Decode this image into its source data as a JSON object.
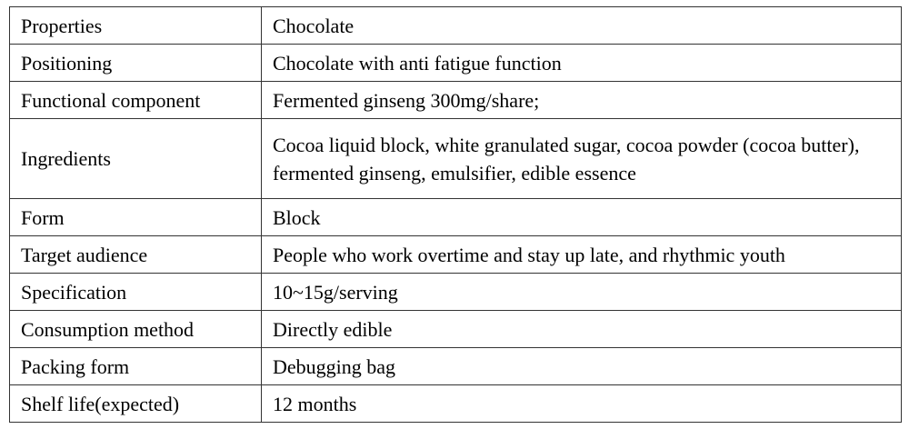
{
  "table": {
    "rows": [
      {
        "label": "Properties",
        "value": "Chocolate"
      },
      {
        "label": "Positioning",
        "value": "Chocolate with anti fatigue function"
      },
      {
        "label": "Functional component",
        "value": "Fermented ginseng 300mg/share;"
      },
      {
        "label": "Ingredients",
        "value": "Cocoa liquid block, white granulated sugar, cocoa powder (cocoa butter), fermented ginseng, emulsifier, edible essence"
      },
      {
        "label": "Form",
        "value": "Block"
      },
      {
        "label": "Target audience",
        "value": "People who work overtime and stay up late, and rhythmic youth"
      },
      {
        "label": "Specification",
        "value": "10~15g/serving"
      },
      {
        "label": "Consumption method",
        "value": "Directly edible"
      },
      {
        "label": "Packing form",
        "value": "Debugging bag"
      },
      {
        "label": "Shelf life(expected)",
        "value": "12 months"
      }
    ]
  }
}
